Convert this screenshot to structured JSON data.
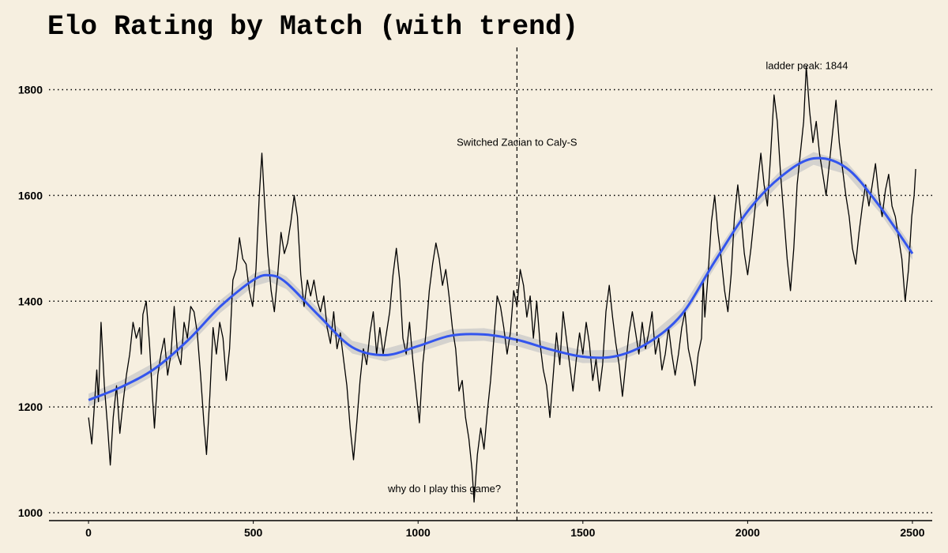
{
  "chart_data": {
    "type": "line",
    "title": "Elo Rating by Match (with trend)",
    "xlabel": "",
    "ylabel": "",
    "xlim": [
      -120,
      2560
    ],
    "ylim": [
      985,
      1880
    ],
    "x_ticks": [
      0,
      500,
      1000,
      1500,
      2000,
      2500
    ],
    "y_ticks": [
      1000,
      1200,
      1400,
      1600,
      1800
    ],
    "grid": "horizontal dotted",
    "legend": "none",
    "colors": {
      "background": "#f6efe0",
      "elo_line": "#000000",
      "trend_line": "#3355ee",
      "trend_band": "#c8c8c8"
    },
    "series": [
      {
        "kind": "elo",
        "points": [
          [
            0,
            1180
          ],
          [
            10,
            1130
          ],
          [
            25,
            1270
          ],
          [
            30,
            1210
          ],
          [
            38,
            1360
          ],
          [
            48,
            1240
          ],
          [
            58,
            1160
          ],
          [
            66,
            1090
          ],
          [
            75,
            1180
          ],
          [
            85,
            1240
          ],
          [
            95,
            1150
          ],
          [
            105,
            1210
          ],
          [
            115,
            1260
          ],
          [
            125,
            1300
          ],
          [
            135,
            1360
          ],
          [
            145,
            1330
          ],
          [
            155,
            1350
          ],
          [
            160,
            1300
          ],
          [
            165,
            1375
          ],
          [
            175,
            1400
          ],
          [
            185,
            1320
          ],
          [
            195,
            1210
          ],
          [
            200,
            1160
          ],
          [
            210,
            1260
          ],
          [
            220,
            1300
          ],
          [
            230,
            1330
          ],
          [
            240,
            1260
          ],
          [
            250,
            1300
          ],
          [
            260,
            1390
          ],
          [
            270,
            1300
          ],
          [
            280,
            1280
          ],
          [
            290,
            1360
          ],
          [
            300,
            1330
          ],
          [
            310,
            1390
          ],
          [
            320,
            1380
          ],
          [
            330,
            1340
          ],
          [
            340,
            1260
          ],
          [
            350,
            1170
          ],
          [
            358,
            1110
          ],
          [
            368,
            1220
          ],
          [
            378,
            1350
          ],
          [
            388,
            1300
          ],
          [
            398,
            1360
          ],
          [
            408,
            1330
          ],
          [
            418,
            1250
          ],
          [
            428,
            1310
          ],
          [
            438,
            1440
          ],
          [
            448,
            1460
          ],
          [
            458,
            1520
          ],
          [
            468,
            1480
          ],
          [
            478,
            1470
          ],
          [
            488,
            1420
          ],
          [
            498,
            1390
          ],
          [
            508,
            1460
          ],
          [
            518,
            1600
          ],
          [
            526,
            1680
          ],
          [
            534,
            1590
          ],
          [
            544,
            1490
          ],
          [
            554,
            1420
          ],
          [
            564,
            1380
          ],
          [
            574,
            1450
          ],
          [
            584,
            1530
          ],
          [
            594,
            1490
          ],
          [
            604,
            1510
          ],
          [
            614,
            1550
          ],
          [
            624,
            1600
          ],
          [
            634,
            1560
          ],
          [
            644,
            1450
          ],
          [
            654,
            1390
          ],
          [
            664,
            1440
          ],
          [
            674,
            1410
          ],
          [
            684,
            1440
          ],
          [
            694,
            1400
          ],
          [
            704,
            1380
          ],
          [
            714,
            1410
          ],
          [
            724,
            1350
          ],
          [
            734,
            1320
          ],
          [
            744,
            1380
          ],
          [
            754,
            1310
          ],
          [
            764,
            1340
          ],
          [
            774,
            1290
          ],
          [
            784,
            1240
          ],
          [
            794,
            1160
          ],
          [
            804,
            1100
          ],
          [
            814,
            1170
          ],
          [
            824,
            1250
          ],
          [
            834,
            1310
          ],
          [
            844,
            1280
          ],
          [
            854,
            1340
          ],
          [
            864,
            1380
          ],
          [
            874,
            1300
          ],
          [
            884,
            1350
          ],
          [
            894,
            1300
          ],
          [
            904,
            1340
          ],
          [
            914,
            1380
          ],
          [
            924,
            1450
          ],
          [
            934,
            1500
          ],
          [
            944,
            1440
          ],
          [
            954,
            1330
          ],
          [
            964,
            1300
          ],
          [
            974,
            1360
          ],
          [
            984,
            1290
          ],
          [
            994,
            1230
          ],
          [
            1004,
            1170
          ],
          [
            1014,
            1280
          ],
          [
            1024,
            1340
          ],
          [
            1034,
            1420
          ],
          [
            1044,
            1470
          ],
          [
            1054,
            1510
          ],
          [
            1064,
            1480
          ],
          [
            1074,
            1430
          ],
          [
            1084,
            1460
          ],
          [
            1094,
            1410
          ],
          [
            1104,
            1350
          ],
          [
            1114,
            1310
          ],
          [
            1124,
            1230
          ],
          [
            1134,
            1250
          ],
          [
            1144,
            1180
          ],
          [
            1154,
            1140
          ],
          [
            1164,
            1080
          ],
          [
            1170,
            1020
          ],
          [
            1180,
            1110
          ],
          [
            1190,
            1160
          ],
          [
            1200,
            1120
          ],
          [
            1210,
            1190
          ],
          [
            1220,
            1250
          ],
          [
            1230,
            1330
          ],
          [
            1240,
            1410
          ],
          [
            1250,
            1390
          ],
          [
            1260,
            1350
          ],
          [
            1270,
            1300
          ],
          [
            1280,
            1340
          ],
          [
            1290,
            1420
          ],
          [
            1300,
            1390
          ],
          [
            1310,
            1460
          ],
          [
            1320,
            1430
          ],
          [
            1330,
            1370
          ],
          [
            1340,
            1410
          ],
          [
            1350,
            1330
          ],
          [
            1360,
            1400
          ],
          [
            1370,
            1320
          ],
          [
            1380,
            1270
          ],
          [
            1390,
            1240
          ],
          [
            1400,
            1180
          ],
          [
            1410,
            1260
          ],
          [
            1420,
            1340
          ],
          [
            1430,
            1280
          ],
          [
            1440,
            1380
          ],
          [
            1450,
            1330
          ],
          [
            1460,
            1280
          ],
          [
            1470,
            1230
          ],
          [
            1480,
            1290
          ],
          [
            1490,
            1340
          ],
          [
            1500,
            1300
          ],
          [
            1510,
            1360
          ],
          [
            1520,
            1320
          ],
          [
            1530,
            1250
          ],
          [
            1540,
            1290
          ],
          [
            1550,
            1230
          ],
          [
            1560,
            1280
          ],
          [
            1570,
            1380
          ],
          [
            1580,
            1430
          ],
          [
            1590,
            1370
          ],
          [
            1600,
            1320
          ],
          [
            1610,
            1280
          ],
          [
            1620,
            1220
          ],
          [
            1630,
            1280
          ],
          [
            1640,
            1340
          ],
          [
            1650,
            1380
          ],
          [
            1660,
            1340
          ],
          [
            1670,
            1300
          ],
          [
            1680,
            1360
          ],
          [
            1690,
            1310
          ],
          [
            1700,
            1340
          ],
          [
            1710,
            1380
          ],
          [
            1720,
            1300
          ],
          [
            1730,
            1330
          ],
          [
            1740,
            1270
          ],
          [
            1750,
            1300
          ],
          [
            1760,
            1350
          ],
          [
            1770,
            1300
          ],
          [
            1780,
            1260
          ],
          [
            1790,
            1300
          ],
          [
            1800,
            1350
          ],
          [
            1810,
            1380
          ],
          [
            1820,
            1310
          ],
          [
            1830,
            1280
          ],
          [
            1840,
            1240
          ],
          [
            1850,
            1300
          ],
          [
            1860,
            1330
          ],
          [
            1865,
            1440
          ],
          [
            1870,
            1370
          ],
          [
            1880,
            1450
          ],
          [
            1890,
            1550
          ],
          [
            1900,
            1600
          ],
          [
            1910,
            1530
          ],
          [
            1920,
            1480
          ],
          [
            1930,
            1420
          ],
          [
            1940,
            1380
          ],
          [
            1950,
            1450
          ],
          [
            1960,
            1560
          ],
          [
            1970,
            1620
          ],
          [
            1980,
            1560
          ],
          [
            1990,
            1490
          ],
          [
            2000,
            1450
          ],
          [
            2010,
            1500
          ],
          [
            2020,
            1560
          ],
          [
            2030,
            1620
          ],
          [
            2040,
            1680
          ],
          [
            2050,
            1620
          ],
          [
            2060,
            1580
          ],
          [
            2070,
            1680
          ],
          [
            2080,
            1790
          ],
          [
            2090,
            1740
          ],
          [
            2100,
            1640
          ],
          [
            2110,
            1560
          ],
          [
            2120,
            1480
          ],
          [
            2130,
            1420
          ],
          [
            2140,
            1500
          ],
          [
            2150,
            1620
          ],
          [
            2160,
            1680
          ],
          [
            2170,
            1740
          ],
          [
            2178,
            1844
          ],
          [
            2188,
            1760
          ],
          [
            2198,
            1700
          ],
          [
            2208,
            1740
          ],
          [
            2218,
            1680
          ],
          [
            2228,
            1640
          ],
          [
            2238,
            1600
          ],
          [
            2248,
            1660
          ],
          [
            2258,
            1720
          ],
          [
            2268,
            1780
          ],
          [
            2278,
            1700
          ],
          [
            2288,
            1650
          ],
          [
            2298,
            1600
          ],
          [
            2308,
            1560
          ],
          [
            2318,
            1500
          ],
          [
            2328,
            1470
          ],
          [
            2338,
            1530
          ],
          [
            2348,
            1580
          ],
          [
            2358,
            1620
          ],
          [
            2368,
            1580
          ],
          [
            2378,
            1620
          ],
          [
            2388,
            1660
          ],
          [
            2398,
            1600
          ],
          [
            2408,
            1560
          ],
          [
            2418,
            1610
          ],
          [
            2428,
            1640
          ],
          [
            2438,
            1580
          ],
          [
            2448,
            1560
          ],
          [
            2458,
            1520
          ],
          [
            2468,
            1480
          ],
          [
            2478,
            1400
          ],
          [
            2488,
            1460
          ],
          [
            2498,
            1560
          ],
          [
            2505,
            1600
          ],
          [
            2510,
            1650
          ]
        ]
      },
      {
        "kind": "trend",
        "points": [
          [
            0,
            1213
          ],
          [
            100,
            1238
          ],
          [
            200,
            1272
          ],
          [
            300,
            1325
          ],
          [
            400,
            1390
          ],
          [
            500,
            1440
          ],
          [
            550,
            1449
          ],
          [
            600,
            1435
          ],
          [
            700,
            1372
          ],
          [
            800,
            1313
          ],
          [
            900,
            1298
          ],
          [
            1000,
            1315
          ],
          [
            1100,
            1335
          ],
          [
            1200,
            1337
          ],
          [
            1300,
            1327
          ],
          [
            1400,
            1309
          ],
          [
            1500,
            1295
          ],
          [
            1600,
            1296
          ],
          [
            1700,
            1322
          ],
          [
            1800,
            1375
          ],
          [
            1900,
            1475
          ],
          [
            2000,
            1570
          ],
          [
            2100,
            1635
          ],
          [
            2200,
            1670
          ],
          [
            2300,
            1652
          ],
          [
            2400,
            1580
          ],
          [
            2500,
            1490
          ]
        ],
        "band": 12
      }
    ],
    "annotations": [
      {
        "x": 1300,
        "y": 1700,
        "text": "Switched Zacian to Caly-S"
      },
      {
        "x": 2180,
        "y": 1845,
        "text": "ladder peak: 1844"
      },
      {
        "x": 1080,
        "y": 1045,
        "text": "why do I play this game?"
      }
    ],
    "vline": {
      "x": 1300,
      "style": "dashed"
    }
  }
}
